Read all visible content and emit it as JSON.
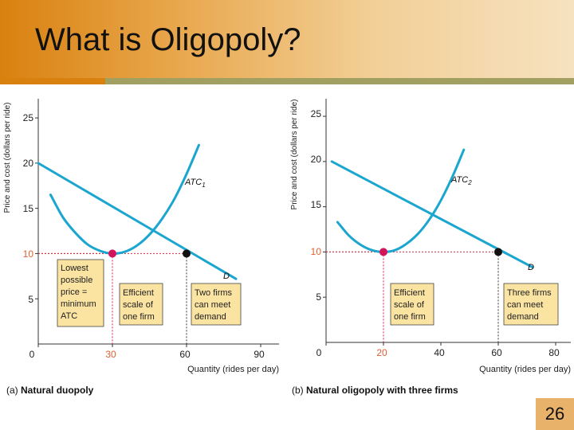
{
  "slide": {
    "title": "What is Oligopoly?",
    "page_number": "26"
  },
  "colors": {
    "curve": "#1aa6cf",
    "accent": "#d4145a",
    "highlight_axis": "#e06030",
    "label_box": "#fbe3a2",
    "header_start": "#d9810f"
  },
  "chart_data": [
    {
      "type": "line",
      "caption_prefix": "(a)",
      "caption": "Natural duopoly",
      "xlabel": "Quantity (rides per day)",
      "ylabel": "Price and cost (dollars per ride)",
      "xlim": [
        0,
        100
      ],
      "ylim": [
        0,
        28
      ],
      "x_ticks": [
        "0",
        "30",
        "60",
        "90"
      ],
      "y_ticks": [
        "5",
        "10",
        "15",
        "20",
        "25"
      ],
      "highlight_ticks": {
        "x": "30",
        "y": "10"
      },
      "series": [
        {
          "name": "D",
          "x": [
            0,
            80
          ],
          "y": [
            20,
            7.2
          ]
        },
        {
          "name": "ATC1",
          "x": [
            5,
            10,
            15,
            20,
            25,
            30,
            35,
            40,
            45,
            50,
            55,
            60,
            65
          ],
          "y": [
            16.5,
            14.0,
            12.3,
            11.0,
            10.3,
            10.0,
            10.2,
            10.9,
            12.1,
            13.8,
            16.0,
            18.8,
            22.0
          ]
        }
      ],
      "series_labels": {
        "ATC": "ATC",
        "ATC_sub": "1",
        "D": "D"
      },
      "points": [
        {
          "x": 30,
          "y": 10,
          "color": "#d4145a"
        },
        {
          "x": 60,
          "y": 10,
          "color": "#111111"
        }
      ],
      "guides": [
        {
          "x": 30,
          "y": 10
        },
        {
          "x": 60,
          "y": 10
        }
      ],
      "annotations": [
        "Lowest possible price = minimum ATC",
        "Efficient scale of one firm",
        "Two firms can meet demand"
      ]
    },
    {
      "type": "line",
      "caption_prefix": "(b)",
      "caption": "Natural oligopoly with three firms",
      "xlabel": "Quantity (rides per day)",
      "ylabel": "Price and cost (dollars per ride)",
      "xlim": [
        0,
        85
      ],
      "ylim": [
        0,
        28
      ],
      "x_ticks": [
        "0",
        "20",
        "40",
        "60",
        "80"
      ],
      "y_ticks": [
        "5",
        "10",
        "15",
        "20",
        "25"
      ],
      "highlight_ticks": {
        "x": "20",
        "y": "10"
      },
      "series": [
        {
          "name": "D",
          "x": [
            2,
            72
          ],
          "y": [
            20,
            8.3
          ]
        },
        {
          "name": "ATC2",
          "x": [
            4,
            8,
            12,
            16,
            20,
            24,
            28,
            32,
            36,
            40,
            44,
            48
          ],
          "y": [
            13.3,
            11.8,
            10.8,
            10.2,
            10.0,
            10.2,
            10.9,
            12.0,
            13.6,
            15.7,
            18.3,
            21.3
          ]
        }
      ],
      "series_labels": {
        "ATC": "ATC",
        "ATC_sub": "2",
        "D": "D"
      },
      "points": [
        {
          "x": 20,
          "y": 10,
          "color": "#d4145a"
        },
        {
          "x": 60,
          "y": 10,
          "color": "#111111"
        }
      ],
      "guides": [
        {
          "x": 20,
          "y": 10
        },
        {
          "x": 60,
          "y": 10
        }
      ],
      "annotations": [
        "Efficient scale of one firm",
        "Three firms can meet demand"
      ]
    }
  ]
}
